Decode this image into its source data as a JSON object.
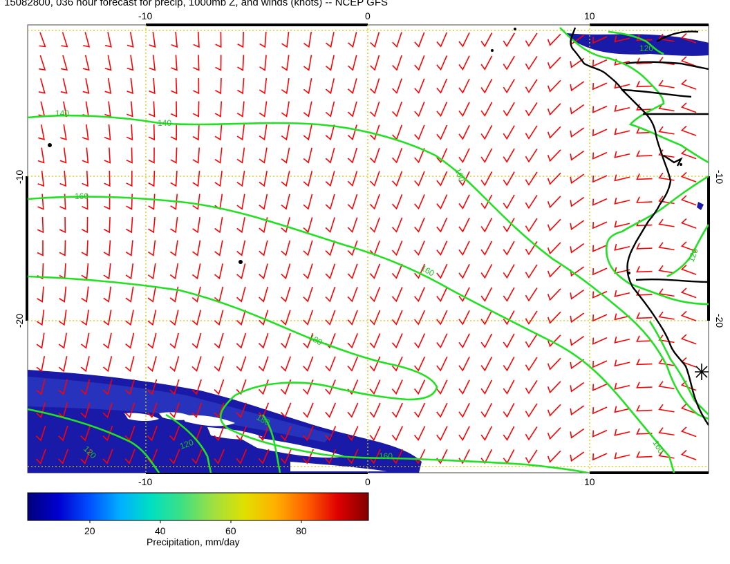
{
  "title": "15082800, 036 hour forecast for precip, 1000mb Z, and winds (knots) -- NCEP GFS",
  "axes": {
    "top_ticks": [
      "-10",
      "0",
      "10"
    ],
    "bottom_ticks": [
      "-10",
      "0",
      "10"
    ],
    "left_ticks": [
      "-10",
      "-20"
    ],
    "right_ticks": [
      "-10",
      "-20"
    ]
  },
  "contours": {
    "color": "#22e022",
    "labels": [
      "140",
      "140",
      "160",
      "160",
      "180",
      "180",
      "160",
      "120",
      "120",
      "120",
      "120",
      "160",
      "160"
    ]
  },
  "wind_barbs": {
    "color": "#ff0000"
  },
  "coastline_color": "#000000",
  "grid_color": "#d8c800",
  "precip_color": "#1a1aa8",
  "colorbar": {
    "label": "Precipitation, mm/day",
    "ticks": [
      "20",
      "40",
      "60",
      "80"
    ],
    "stops": [
      "#00007a",
      "#0000d0",
      "#0050ff",
      "#00b0ff",
      "#00e0c0",
      "#40e080",
      "#a0e040",
      "#e0e000",
      "#ffb000",
      "#ff6000",
      "#e00000",
      "#800000"
    ]
  }
}
